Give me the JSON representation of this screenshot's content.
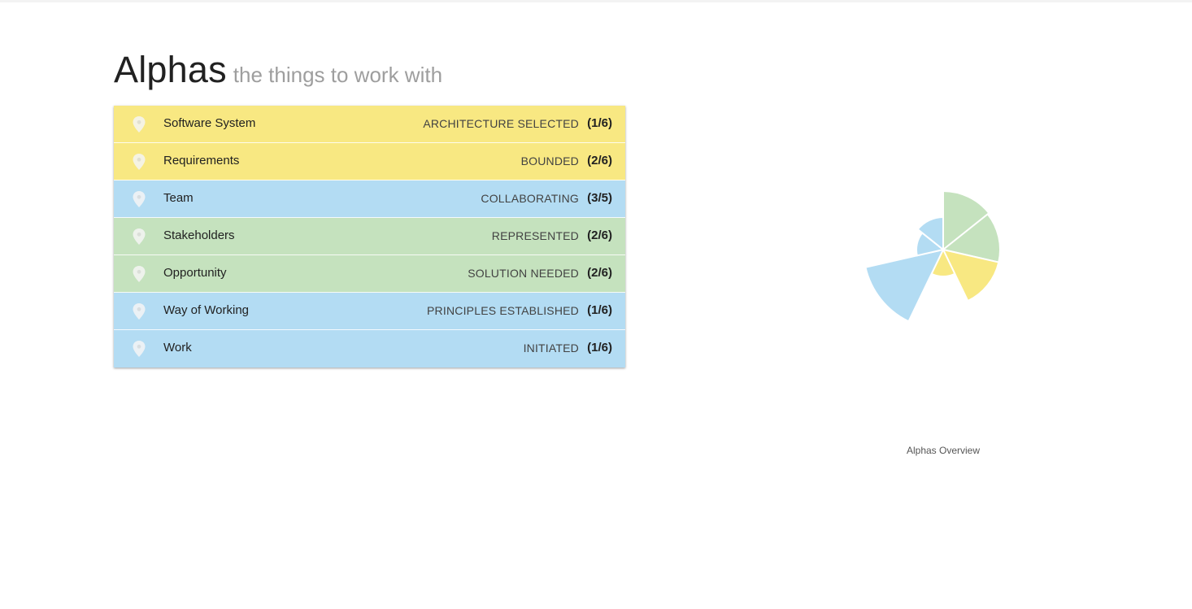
{
  "heading": {
    "title": "Alphas",
    "subtitle": "the things to work with"
  },
  "colors": {
    "yellow": "#f8e882",
    "blue": "#b3dcf3",
    "green": "#c5e2be",
    "pin": "#f5f5f5"
  },
  "alphas": [
    {
      "name": "Software System",
      "state": "ARCHITECTURE SELECTED",
      "progress": "(1/6)",
      "color": "#f8e882"
    },
    {
      "name": "Requirements",
      "state": "BOUNDED",
      "progress": "(2/6)",
      "color": "#f8e882"
    },
    {
      "name": "Team",
      "state": "COLLABORATING",
      "progress": "(3/5)",
      "color": "#b3dcf3"
    },
    {
      "name": "Stakeholders",
      "state": "REPRESENTED",
      "progress": "(2/6)",
      "color": "#c5e2be"
    },
    {
      "name": "Opportunity",
      "state": "SOLUTION NEEDED",
      "progress": "(2/6)",
      "color": "#c5e2be"
    },
    {
      "name": "Way of Working",
      "state": "PRINCIPLES ESTABLISHED",
      "progress": "(1/6)",
      "color": "#b3dcf3"
    },
    {
      "name": "Work",
      "state": "INITIATED",
      "progress": "(1/6)",
      "color": "#b3dcf3"
    }
  ],
  "chart_data": {
    "type": "polar-area",
    "caption": "Alphas Overview",
    "max_value": 1.0,
    "slices": [
      {
        "value": 0.72,
        "color": "#c5e2be"
      },
      {
        "value": 0.7,
        "color": "#c5e2be"
      },
      {
        "value": 0.7,
        "color": "#f8e882"
      },
      {
        "value": 0.33,
        "color": "#f8e882"
      },
      {
        "value": 0.98,
        "color": "#b3dcf3"
      },
      {
        "value": 0.33,
        "color": "#b3dcf3"
      },
      {
        "value": 0.4,
        "color": "#b3dcf3"
      }
    ]
  }
}
